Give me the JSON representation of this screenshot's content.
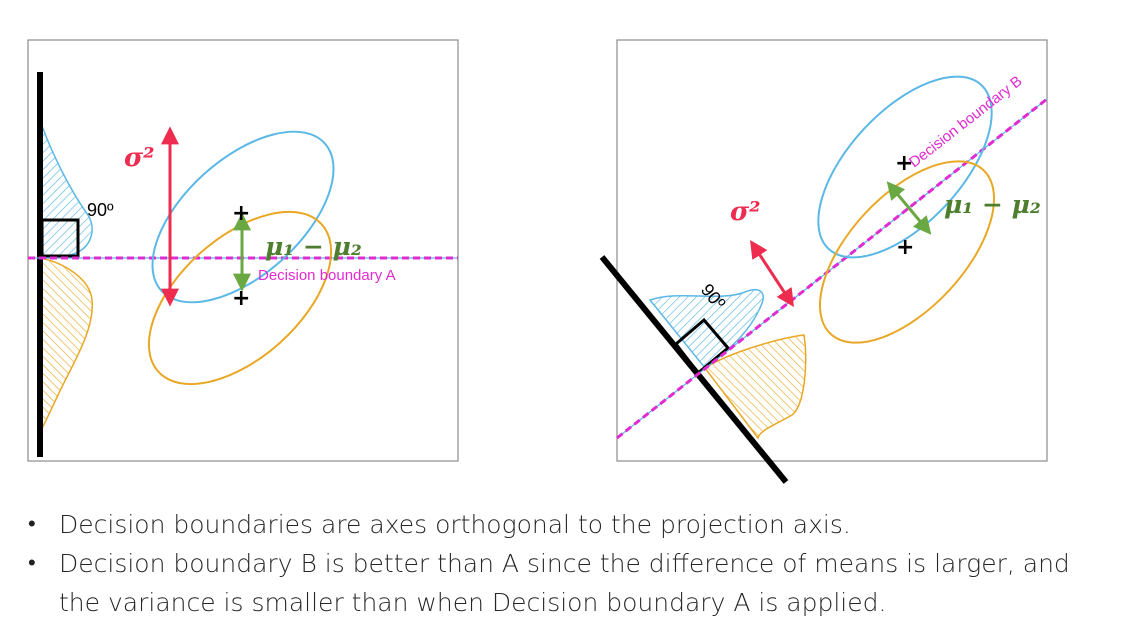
{
  "colors": {
    "blue": "#5bb8e6",
    "orange": "#e8a825",
    "red": "#ee2c4f",
    "green": "#6aa843",
    "green_text": "#4f7f2e",
    "magenta": "#e02bd0",
    "black": "#000000"
  },
  "left_panel": {
    "sigma_label": "σ²",
    "angle_label": "90º",
    "means_label": "μ₁ − μ₂",
    "boundary_label": "Decision boundary A",
    "mean_marker_1": "+",
    "mean_marker_2": "+"
  },
  "right_panel": {
    "sigma_label": "σ²",
    "angle_label": "90º",
    "means_label": "μ₁ − μ₂",
    "boundary_label": "Decision boundary B",
    "mean_marker_1": "+",
    "mean_marker_2": "+"
  },
  "bullets": [
    {
      "marker": "•",
      "text": "Decision boundaries are axes orthogonal to the projection axis."
    },
    {
      "marker": "•",
      "text": "Decision boundary B is better than A since the difference of means is larger, and the variance is smaller than when Decision boundary A is applied."
    }
  ]
}
